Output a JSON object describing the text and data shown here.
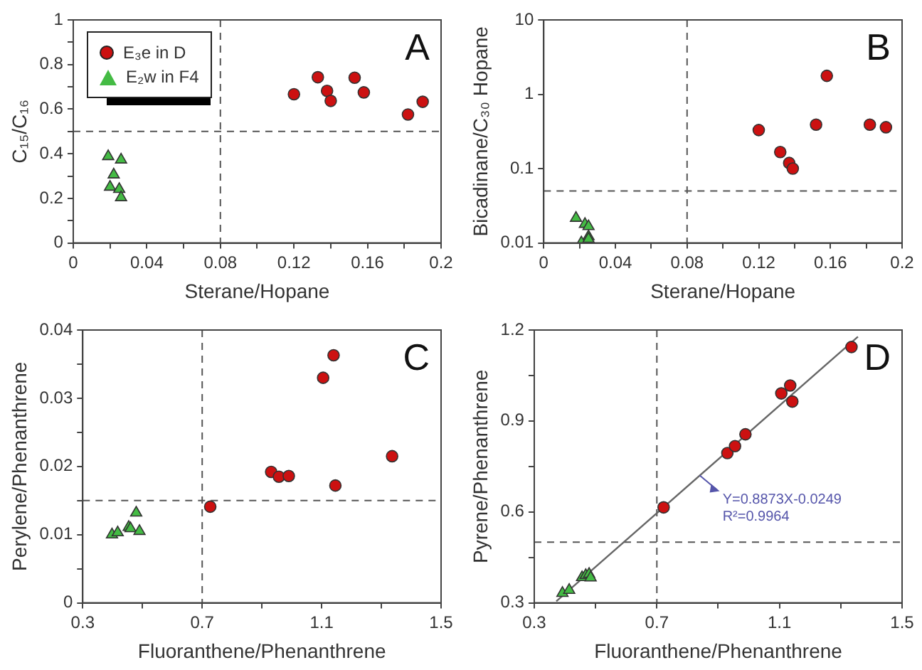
{
  "chart_data": [
    {
      "type": "scatter",
      "xlabel": "Sterane/Hopane",
      "ylabel": "C₁₅/C₁₆",
      "legend": "top left",
      "annotations": [
        "A"
      ],
      "xlim": [
        0,
        0.2
      ],
      "xticks": [
        0,
        {
          "value": 0.02,
          "label": null
        },
        0.04,
        {
          "value": 0.06,
          "label": null
        },
        0.08,
        {
          "value": 0.1,
          "label": null
        },
        0.12,
        {
          "value": 0.14,
          "label": null
        },
        0.16,
        {
          "value": 0.18,
          "label": null
        },
        0.2
      ],
      "ylim": [
        0,
        1
      ],
      "yticks": [
        0,
        {
          "value": 0.1,
          "label": null
        },
        0.2,
        {
          "value": 0.3,
          "label": null
        },
        0.4,
        {
          "value": 0.5,
          "label": null
        },
        0.6,
        {
          "value": 0.7,
          "label": null
        },
        0.8,
        {
          "value": 0.9,
          "label": null
        },
        1
      ],
      "ref_lines": [
        {
          "axis": "x",
          "value": 0.08,
          "line_style": "dashed"
        },
        {
          "axis": "y",
          "value": 0.5,
          "line_style": "dashed"
        }
      ],
      "series": [
        {
          "name": "E₃e in D",
          "color": "#cc1111",
          "marker": "circle",
          "x": [
            0.12,
            0.133,
            0.138,
            0.14,
            0.153,
            0.158,
            0.182,
            0.19
          ],
          "values": [
            0.667,
            0.743,
            0.682,
            0.637,
            0.741,
            0.675,
            0.576,
            0.633
          ]
        },
        {
          "name": "E₂w in F4",
          "color": "#44bb44",
          "marker": "triangle",
          "x": [
            0.019,
            0.026,
            0.022,
            0.02,
            0.025,
            0.026
          ],
          "values": [
            0.388,
            0.373,
            0.306,
            0.251,
            0.241,
            0.204
          ]
        }
      ]
    },
    {
      "type": "scatter",
      "xlabel": "Sterane/Hopane",
      "ylabel": "Bicadinane/C₃₀ Hopane",
      "log": "y",
      "annotations": [
        "B"
      ],
      "xlim": [
        0,
        0.2
      ],
      "xticks": [
        0,
        {
          "value": 0.02,
          "label": null
        },
        0.04,
        {
          "value": 0.06,
          "label": null
        },
        0.08,
        {
          "value": 0.1,
          "label": null
        },
        0.12,
        {
          "value": 0.14,
          "label": null
        },
        0.16,
        {
          "value": 0.18,
          "label": null
        },
        0.2
      ],
      "ylim": [
        0.01,
        10
      ],
      "yticks": [
        0.01,
        0.1,
        1,
        10
      ],
      "ref_lines": [
        {
          "axis": "x",
          "value": 0.08,
          "line_style": "dashed"
        },
        {
          "axis": "y",
          "value": 0.05,
          "line_style": "dashed"
        }
      ],
      "series": [
        {
          "color": "#cc1111",
          "marker": "circle",
          "x": [
            0.12,
            0.132,
            0.137,
            0.139,
            0.152,
            0.158,
            0.182,
            0.191
          ],
          "values": [
            0.33,
            0.167,
            0.119,
            0.1,
            0.39,
            1.77,
            0.39,
            0.36
          ]
        },
        {
          "color": "#44bb44",
          "marker": "triangle",
          "x": [
            0.018,
            0.023,
            0.025,
            0.025,
            0.021,
            0.025
          ],
          "values": [
            0.0216,
            0.0179,
            0.0167,
            0.0122,
            0.0101,
            0.0113
          ]
        }
      ]
    },
    {
      "type": "scatter",
      "xlabel": "Fluoranthene/Phenanthrene",
      "ylabel": "Perylene/Phenanthrene",
      "annotations": [
        "C"
      ],
      "xlim": [
        0.3,
        1.5
      ],
      "xticks": [
        0.3,
        {
          "value": 0.5,
          "label": null
        },
        0.7,
        {
          "value": 0.9,
          "label": null
        },
        1.1,
        {
          "value": 1.3,
          "label": null
        },
        1.5
      ],
      "ylim": [
        0,
        0.04
      ],
      "yticks": [
        0,
        {
          "value": 0.005,
          "label": null
        },
        0.01,
        {
          "value": 0.015,
          "label": null
        },
        0.02,
        {
          "value": 0.025,
          "label": null
        },
        0.03,
        {
          "value": 0.035,
          "label": null
        },
        0.04
      ],
      "ref_lines": [
        {
          "axis": "x",
          "value": 0.7,
          "line_style": "dashed"
        },
        {
          "axis": "y",
          "value": 0.015,
          "line_style": "dashed"
        }
      ],
      "series": [
        {
          "color": "#cc1111",
          "marker": "circle",
          "x": [
            0.727,
            0.931,
            0.957,
            0.99,
            1.105,
            1.14,
            1.146,
            1.336
          ],
          "values": [
            0.0141,
            0.0192,
            0.0185,
            0.0186,
            0.033,
            0.0363,
            0.0172,
            0.0215
          ]
        },
        {
          "color": "#44bb44",
          "marker": "triangle",
          "x": [
            0.398,
            0.417,
            0.454,
            0.46,
            0.479,
            0.49
          ],
          "values": [
            0.01,
            0.0103,
            0.0111,
            0.0109,
            0.0132,
            0.0105
          ]
        }
      ]
    },
    {
      "type": "scatter",
      "xlabel": "Fluoranthene/Phenanthrene",
      "ylabel": "Pyrene/Phenanthrene",
      "annotations": [
        "D",
        {
          "text": "Y=0.8873X-0.0249",
          "x": 0.84,
          "y": 0.72
        },
        "R²=0.9964"
      ],
      "xlim": [
        0.3,
        1.5
      ],
      "xticks": [
        0.3,
        {
          "value": 0.5,
          "label": null
        },
        0.7,
        {
          "value": 0.9,
          "label": null
        },
        1.1,
        {
          "value": 1.3,
          "label": null
        },
        1.5
      ],
      "ylim": [
        0.3,
        1.2
      ],
      "yticks": [
        0.3,
        {
          "value": 0.45,
          "label": null
        },
        0.6,
        {
          "value": 0.75,
          "label": null
        },
        0.9,
        {
          "value": 1.05,
          "label": null
        },
        1.2
      ],
      "ref_lines": [
        {
          "axis": "x",
          "value": 0.7,
          "line_style": "dashed"
        },
        {
          "axis": "y",
          "value": 0.5,
          "line_style": "dashed"
        }
      ],
      "series": [
        {
          "type": "line",
          "color": "#666666",
          "marker": "none",
          "x": [
            0.372,
            1.356
          ],
          "values": [
            0.305,
            1.178
          ]
        },
        {
          "color": "#cc1111",
          "marker": "circle",
          "x": [
            0.722,
            0.93,
            0.955,
            0.989,
            1.106,
            1.135,
            1.142,
            1.335
          ],
          "values": [
            0.615,
            0.794,
            0.817,
            0.856,
            0.991,
            1.017,
            0.964,
            1.144
          ]
        },
        {
          "color": "#44bb44",
          "marker": "triangle",
          "x": [
            0.392,
            0.414,
            0.456,
            0.468,
            0.479,
            0.484
          ],
          "values": [
            0.332,
            0.342,
            0.384,
            0.391,
            0.395,
            0.383
          ]
        }
      ]
    }
  ]
}
